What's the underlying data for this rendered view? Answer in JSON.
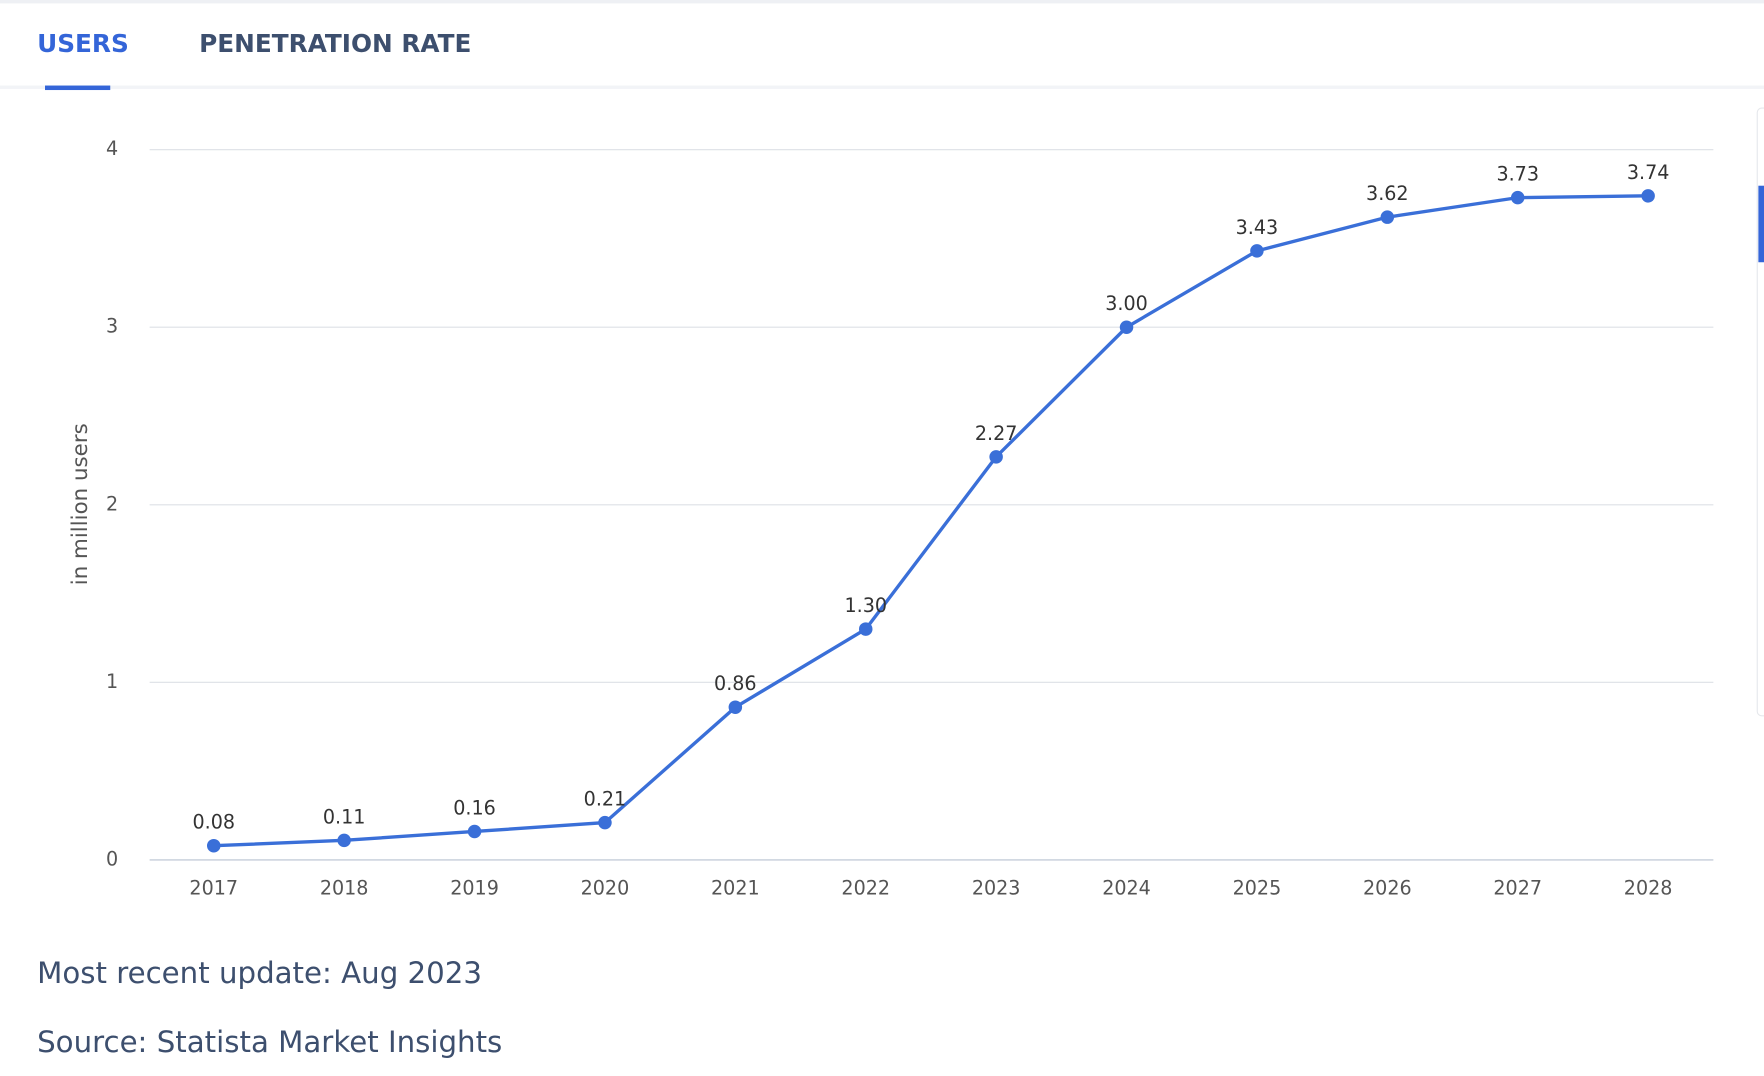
{
  "tabs": [
    "USERS",
    "PENETRATION RATE"
  ],
  "chart_data": {
    "type": "line",
    "y_label": "in million users",
    "categories": [
      "2017",
      "2018",
      "2019",
      "2020",
      "2021",
      "2022",
      "2023",
      "2024",
      "2025",
      "2026",
      "2027",
      "2028"
    ],
    "values": [
      0.08,
      0.11,
      0.16,
      0.21,
      0.86,
      1.3,
      2.27,
      3.0,
      3.43,
      3.62,
      3.73,
      3.74
    ],
    "value_labels": [
      "0.08",
      "0.11",
      "0.16",
      "0.21",
      "0.86",
      "1.30",
      "2.27",
      "3.00",
      "3.43",
      "3.62",
      "3.73",
      "3.74"
    ],
    "color": "#3a6fd8",
    "ylim": [
      0,
      4
    ],
    "yticks": [
      0,
      1,
      2,
      3,
      4
    ],
    "grid": true
  },
  "footer": [
    "Most recent update: Aug 2023",
    "Source: Statista Market Insights"
  ]
}
